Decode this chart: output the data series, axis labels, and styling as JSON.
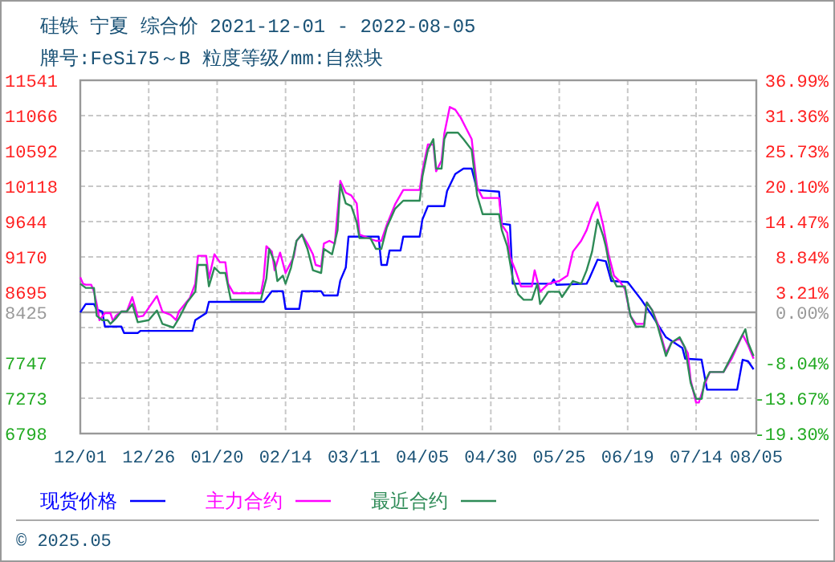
{
  "chart_data": {
    "type": "line",
    "title": "硅铁 宁夏 综合价 2021-12-01 - 2022-08-05",
    "subtitle": "牌号:FeSi75～B 粒度等级/mm:自然块",
    "xlim": [
      "2021-12-01",
      "2022-08-05"
    ],
    "xticks": [
      {
        "value": "2021-12-01",
        "label": "12/01"
      },
      {
        "value": "2021-12-26",
        "label": "12/26"
      },
      {
        "value": "2022-01-20",
        "label": "01/20"
      },
      {
        "value": "2022-02-14",
        "label": "02/14"
      },
      {
        "value": "2022-03-11",
        "label": "03/11"
      },
      {
        "value": "2022-04-05",
        "label": "04/05"
      },
      {
        "value": "2022-04-30",
        "label": "04/30"
      },
      {
        "value": "2022-05-25",
        "label": "05/25"
      },
      {
        "value": "2022-06-19",
        "label": "06/19"
      },
      {
        "value": "2022-07-14",
        "label": "07/14"
      },
      {
        "value": "2022-08-05",
        "label": "08/05"
      }
    ],
    "ylim": [
      6798,
      11541
    ],
    "yticks": [
      6798,
      7273,
      7747,
      {
        "value": 8221,
        "label": null
      },
      8695,
      9170,
      9644,
      10118,
      10592,
      11066,
      11541
    ],
    "y2lim": [
      -19.3,
      36.99
    ],
    "y2ticks": [
      {
        "value": -19.3,
        "label": "-19.30%"
      },
      {
        "value": -13.67,
        "label": "-13.67%"
      },
      {
        "value": -8.04,
        "label": "-8.04%"
      },
      {
        "value": 0,
        "label": "0.00%"
      },
      {
        "value": 3.21,
        "label": "3.21%"
      },
      {
        "value": 8.84,
        "label": "8.84%"
      },
      {
        "value": 14.47,
        "label": "14.47%"
      },
      {
        "value": 20.1,
        "label": "20.10%"
      },
      {
        "value": 25.73,
        "label": "25.73%"
      },
      {
        "value": 31.36,
        "label": "31.36%"
      },
      {
        "value": 36.99,
        "label": "36.99%"
      }
    ],
    "ref_lines": [
      {
        "axis": "y",
        "value": 8425,
        "label": "8425",
        "color": "#999999"
      }
    ],
    "grid": true,
    "legend": "bottom",
    "annotations": [
      "© 2025.05"
    ],
    "series": [
      {
        "name": "现货价格",
        "color": "#0000ff",
        "x": [
          "2021-12-01",
          "2021-12-03",
          "2021-12-06",
          "2021-12-07",
          "2021-12-09",
          "2021-12-10",
          "2021-12-16",
          "2021-12-17",
          "2021-12-22",
          "2021-12-23",
          "2022-01-11",
          "2022-01-12",
          "2022-01-16",
          "2022-01-17",
          "2022-02-06",
          "2022-02-09",
          "2022-02-13",
          "2022-02-14",
          "2022-02-19",
          "2022-02-20",
          "2022-02-27",
          "2022-02-28",
          "2022-03-05",
          "2022-03-06",
          "2022-03-08",
          "2022-03-09",
          "2022-03-20",
          "2022-03-21",
          "2022-03-23",
          "2022-03-24",
          "2022-03-28",
          "2022-03-29",
          "2022-04-04",
          "2022-04-05",
          "2022-04-07",
          "2022-04-13",
          "2022-04-14",
          "2022-04-17",
          "2022-04-20",
          "2022-04-23",
          "2022-04-25",
          "2022-05-03",
          "2022-05-04",
          "2022-05-07",
          "2022-05-08",
          "2022-05-22",
          "2022-05-23",
          "2022-05-24",
          "2022-06-04",
          "2022-06-05",
          "2022-06-08",
          "2022-06-11",
          "2022-06-13",
          "2022-06-19",
          "2022-06-24",
          "2022-06-26",
          "2022-06-28",
          "2022-07-03",
          "2022-07-09",
          "2022-07-10",
          "2022-07-16",
          "2022-07-18",
          "2022-07-29",
          "2022-07-31",
          "2022-08-02",
          "2022-08-04"
        ],
        "values": [
          8425,
          8537,
          8537,
          8465,
          8436,
          8235,
          8235,
          8149,
          8149,
          8177,
          8177,
          8321,
          8415,
          8566,
          8566,
          8709,
          8709,
          8472,
          8472,
          8709,
          8709,
          8652,
          8652,
          8853,
          9026,
          9442,
          9442,
          9062,
          9062,
          9255,
          9255,
          9442,
          9442,
          9672,
          9852,
          9852,
          10053,
          10283,
          10355,
          10355,
          10068,
          10046,
          9615,
          9601,
          8810,
          8810,
          8868,
          8795,
          8810,
          8882,
          9133,
          9112,
          8846,
          8832,
          8594,
          8487,
          8379,
          8091,
          7947,
          7804,
          7789,
          7387,
          7387,
          7789,
          7768,
          7660
        ]
      },
      {
        "name": "主力合约",
        "color": "#ff00ff",
        "x": [
          "2021-12-01",
          "2021-12-02",
          "2021-12-03",
          "2021-12-05",
          "2021-12-06",
          "2021-12-07",
          "2021-12-08",
          "2021-12-10",
          "2021-12-12",
          "2021-12-13",
          "2021-12-14",
          "2021-12-16",
          "2021-12-18",
          "2021-12-20",
          "2021-12-22",
          "2021-12-24",
          "2021-12-26",
          "2021-12-29",
          "2021-12-31",
          "2022-01-03",
          "2022-01-05",
          "2022-01-06",
          "2022-01-10",
          "2022-01-12",
          "2022-01-13",
          "2022-01-16",
          "2022-01-17",
          "2022-01-19",
          "2022-01-21",
          "2022-01-23",
          "2022-01-24",
          "2022-01-26",
          "2022-02-05",
          "2022-02-06",
          "2022-02-07",
          "2022-02-09",
          "2022-02-10",
          "2022-02-12",
          "2022-02-14",
          "2022-02-17",
          "2022-02-18",
          "2022-02-20",
          "2022-02-22",
          "2022-02-24",
          "2022-02-25",
          "2022-02-27",
          "2022-02-28",
          "2022-03-02",
          "2022-03-04",
          "2022-03-06",
          "2022-03-08",
          "2022-03-10",
          "2022-03-12",
          "2022-03-13",
          "2022-03-19",
          "2022-03-21",
          "2022-03-23",
          "2022-03-26",
          "2022-03-29",
          "2022-04-04",
          "2022-04-05",
          "2022-04-07",
          "2022-04-09",
          "2022-04-10",
          "2022-04-12",
          "2022-04-13",
          "2022-04-15",
          "2022-04-17",
          "2022-04-19",
          "2022-04-21",
          "2022-04-23",
          "2022-04-25",
          "2022-04-27",
          "2022-05-03",
          "2022-05-04",
          "2022-05-06",
          "2022-05-07",
          "2022-05-09",
          "2022-05-11",
          "2022-05-15",
          "2022-05-16",
          "2022-05-18",
          "2022-05-21",
          "2022-05-25",
          "2022-05-28",
          "2022-05-30",
          "2022-06-02",
          "2022-06-04",
          "2022-06-06",
          "2022-06-08",
          "2022-06-10",
          "2022-06-12",
          "2022-06-14",
          "2022-06-16",
          "2022-06-18",
          "2022-06-20",
          "2022-06-22",
          "2022-06-25",
          "2022-06-26",
          "2022-06-28",
          "2022-06-30",
          "2022-07-03",
          "2022-07-05",
          "2022-07-08",
          "2022-07-11",
          "2022-07-12",
          "2022-07-14",
          "2022-07-15",
          "2022-07-17",
          "2022-07-19",
          "2022-07-24",
          "2022-07-27",
          "2022-07-31",
          "2022-08-02",
          "2022-08-04"
        ],
        "values": [
          8896,
          8810,
          8796,
          8796,
          8702,
          8537,
          8321,
          8415,
          8415,
          8307,
          8379,
          8436,
          8436,
          8630,
          8365,
          8379,
          8487,
          8645,
          8436,
          8393,
          8321,
          8436,
          8616,
          8810,
          9184,
          9184,
          8882,
          9205,
          9098,
          9098,
          8810,
          8681,
          8681,
          8882,
          9313,
          9241,
          8990,
          9227,
          8954,
          9169,
          9385,
          9471,
          9349,
          9205,
          9062,
          9040,
          9349,
          9385,
          9349,
          10190,
          10032,
          9996,
          9888,
          9471,
          9385,
          9385,
          9601,
          9874,
          10068,
          10068,
          10319,
          10679,
          10679,
          10319,
          10463,
          10823,
          11182,
          11146,
          11038,
          10894,
          10751,
          10104,
          9960,
          9960,
          9601,
          9493,
          9169,
          8990,
          8774,
          8774,
          8990,
          8702,
          8810,
          8846,
          8918,
          9241,
          9385,
          9529,
          9744,
          9902,
          9601,
          9205,
          8918,
          8846,
          8738,
          8379,
          8271,
          8271,
          8558,
          8451,
          8271,
          7876,
          8019,
          8077,
          7876,
          7516,
          7214,
          7214,
          7444,
          7624,
          7624,
          7804,
          8127,
          7984,
          7804
        ]
      },
      {
        "name": "最近合约",
        "color": "#2e8b57",
        "x": [
          "2021-12-01",
          "2021-12-03",
          "2021-12-06",
          "2021-12-07",
          "2021-12-09",
          "2021-12-11",
          "2021-12-12",
          "2021-12-14",
          "2021-12-16",
          "2021-12-18",
          "2021-12-20",
          "2021-12-22",
          "2021-12-26",
          "2021-12-29",
          "2021-12-31",
          "2022-01-04",
          "2022-01-06",
          "2022-01-09",
          "2022-01-12",
          "2022-01-13",
          "2022-01-16",
          "2022-01-17",
          "2022-01-19",
          "2022-01-21",
          "2022-01-23",
          "2022-01-25",
          "2022-02-05",
          "2022-02-07",
          "2022-02-08",
          "2022-02-10",
          "2022-02-11",
          "2022-02-13",
          "2022-02-14",
          "2022-02-16",
          "2022-02-18",
          "2022-02-20",
          "2022-02-22",
          "2022-02-24",
          "2022-02-27",
          "2022-02-28",
          "2022-03-03",
          "2022-03-05",
          "2022-03-06",
          "2022-03-08",
          "2022-03-10",
          "2022-03-12",
          "2022-03-13",
          "2022-03-17",
          "2022-03-19",
          "2022-03-21",
          "2022-03-23",
          "2022-03-26",
          "2022-03-29",
          "2022-04-04",
          "2022-04-05",
          "2022-04-07",
          "2022-04-09",
          "2022-04-10",
          "2022-04-12",
          "2022-04-13",
          "2022-04-14",
          "2022-04-18",
          "2022-04-20",
          "2022-04-23",
          "2022-04-25",
          "2022-04-27",
          "2022-05-03",
          "2022-05-04",
          "2022-05-06",
          "2022-05-08",
          "2022-05-10",
          "2022-05-12",
          "2022-05-15",
          "2022-05-17",
          "2022-05-18",
          "2022-05-21",
          "2022-05-25",
          "2022-05-26",
          "2022-05-30",
          "2022-06-02",
          "2022-06-04",
          "2022-06-06",
          "2022-06-08",
          "2022-06-10",
          "2022-06-11",
          "2022-06-13",
          "2022-06-15",
          "2022-06-18",
          "2022-06-20",
          "2022-06-22",
          "2022-06-25",
          "2022-06-26",
          "2022-06-28",
          "2022-06-30",
          "2022-07-03",
          "2022-07-05",
          "2022-07-08",
          "2022-07-10",
          "2022-07-12",
          "2022-07-14",
          "2022-07-16",
          "2022-07-17",
          "2022-07-19",
          "2022-07-24",
          "2022-07-27",
          "2022-07-29",
          "2022-08-01",
          "2022-08-02",
          "2022-08-04"
        ],
        "values": [
          8810,
          8753,
          8753,
          8379,
          8321,
          8321,
          8271,
          8343,
          8436,
          8436,
          8537,
          8293,
          8321,
          8451,
          8271,
          8221,
          8343,
          8558,
          8702,
          9062,
          9062,
          8774,
          9026,
          8954,
          8954,
          8594,
          8594,
          8882,
          9277,
          9098,
          8846,
          8918,
          8810,
          9026,
          9385,
          9471,
          9277,
          8990,
          8954,
          9277,
          9205,
          9529,
          10140,
          9888,
          9852,
          9637,
          9421,
          9421,
          9277,
          9277,
          9565,
          9816,
          9924,
          9924,
          10247,
          10607,
          10751,
          10355,
          10355,
          10751,
          10837,
          10837,
          10751,
          10607,
          9996,
          9744,
          9744,
          9529,
          9313,
          8882,
          8666,
          8594,
          8594,
          8810,
          8537,
          8702,
          8702,
          8630,
          8846,
          8810,
          8990,
          9241,
          9672,
          9457,
          9313,
          8918,
          8774,
          8774,
          8379,
          8235,
          8235,
          8558,
          8451,
          8235,
          7840,
          8019,
          8091,
          7947,
          7480,
          7265,
          7265,
          7480,
          7624,
          7624,
          7840,
          7984,
          8199,
          8019,
          7840
        ]
      }
    ]
  }
}
